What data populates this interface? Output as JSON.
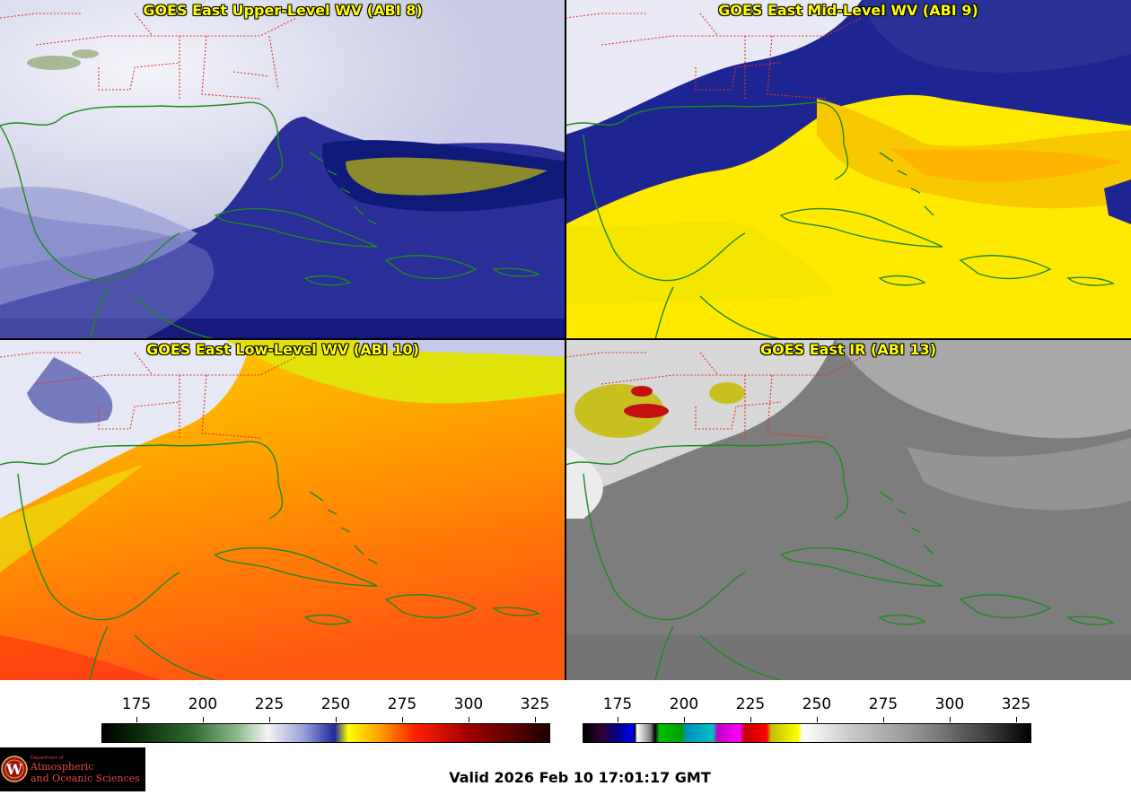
{
  "panels": [
    {
      "title": "GOES East Upper-Level WV (ABI 8)",
      "palette": "wv"
    },
    {
      "title": "GOES East Mid-Level WV (ABI 9)",
      "palette": "wv"
    },
    {
      "title": "GOES East Low-Level WV (ABI 10)",
      "palette": "wv"
    },
    {
      "title": "GOES East IR (ABI 13)",
      "palette": "ir"
    }
  ],
  "colorbars": {
    "wv": {
      "ticks": [
        "175",
        "200",
        "225",
        "250",
        "275",
        "300",
        "325"
      ]
    },
    "ir": {
      "ticks": [
        "175",
        "200",
        "225",
        "250",
        "275",
        "300",
        "325"
      ]
    }
  },
  "logo": {
    "department": "Department of",
    "line1": "Atmospheric",
    "line2": "and Oceanic Sciences",
    "seal_letter": "W"
  },
  "valid_time": "Valid 2026 Feb 10 17:01:17 GMT",
  "colors": {
    "coastline": "#1f8a1f",
    "state_borders": "#e0302a",
    "title_text": "#ffff00"
  }
}
